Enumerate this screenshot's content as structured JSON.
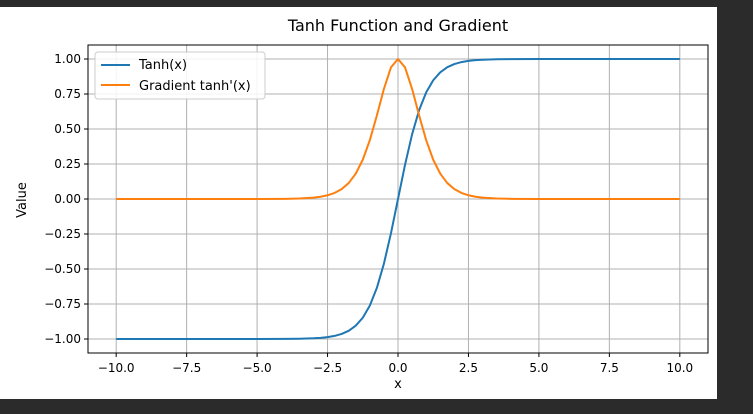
{
  "chart_data": {
    "type": "line",
    "title": "Tanh Function and Gradient",
    "xlabel": "x",
    "ylabel": "Value",
    "xlim": [
      -11,
      11
    ],
    "ylim": [
      -1.1,
      1.1
    ],
    "grid": true,
    "legend_position": "top-left",
    "x_ticks": [
      {
        "value": -10,
        "label": "−10.0"
      },
      {
        "value": -7.5,
        "label": "−7.5"
      },
      {
        "value": -5,
        "label": "−5.0"
      },
      {
        "value": -2.5,
        "label": "−2.5"
      },
      {
        "value": 0,
        "label": "0.0"
      },
      {
        "value": 2.5,
        "label": "2.5"
      },
      {
        "value": 5,
        "label": "5.0"
      },
      {
        "value": 7.5,
        "label": "7.5"
      },
      {
        "value": 10,
        "label": "10.0"
      }
    ],
    "y_ticks": [
      {
        "value": 1,
        "label": "1.00"
      },
      {
        "value": 0.75,
        "label": "0.75"
      },
      {
        "value": 0.5,
        "label": "0.50"
      },
      {
        "value": 0.25,
        "label": "0.25"
      },
      {
        "value": 0,
        "label": "0.00"
      },
      {
        "value": -0.25,
        "label": "−0.25"
      },
      {
        "value": -0.5,
        "label": "−0.50"
      },
      {
        "value": -0.75,
        "label": "−0.75"
      },
      {
        "value": -1,
        "label": "−1.00"
      }
    ],
    "x": [
      -10,
      -8,
      -6,
      -5,
      -4,
      -3.5,
      -3,
      -2.75,
      -2.5,
      -2.25,
      -2,
      -1.75,
      -1.5,
      -1.25,
      -1,
      -0.75,
      -0.5,
      -0.25,
      0,
      0.25,
      0.5,
      0.75,
      1,
      1.25,
      1.5,
      1.75,
      2,
      2.25,
      2.5,
      2.75,
      3,
      3.5,
      4,
      5,
      6,
      8,
      10
    ],
    "series": [
      {
        "name": "Tanh(x)",
        "color": "#1f77b4",
        "values": [
          -1.0,
          -1.0,
          -1.0,
          -0.9999,
          -0.9993,
          -0.9982,
          -0.9951,
          -0.9918,
          -0.9866,
          -0.978,
          -0.964,
          -0.9414,
          -0.9051,
          -0.8483,
          -0.7616,
          -0.6351,
          -0.4621,
          -0.2449,
          0.0,
          0.2449,
          0.4621,
          0.6351,
          0.7616,
          0.8483,
          0.9051,
          0.9414,
          0.964,
          0.978,
          0.9866,
          0.9918,
          0.9951,
          0.9982,
          0.9993,
          0.9999,
          1.0,
          1.0,
          1.0
        ]
      },
      {
        "name": "Gradient tanh'(x)",
        "color": "#ff7f0e",
        "values": [
          0.0,
          0.0,
          0.0,
          0.0002,
          0.0013,
          0.0036,
          0.0099,
          0.0163,
          0.0266,
          0.0435,
          0.0707,
          0.1138,
          0.1807,
          0.2804,
          0.42,
          0.5966,
          0.7864,
          0.94,
          1.0,
          0.94,
          0.7864,
          0.5966,
          0.42,
          0.2804,
          0.1807,
          0.1138,
          0.0707,
          0.0435,
          0.0266,
          0.0163,
          0.0099,
          0.0036,
          0.0013,
          0.0002,
          0.0,
          0.0,
          0.0
        ]
      }
    ]
  }
}
